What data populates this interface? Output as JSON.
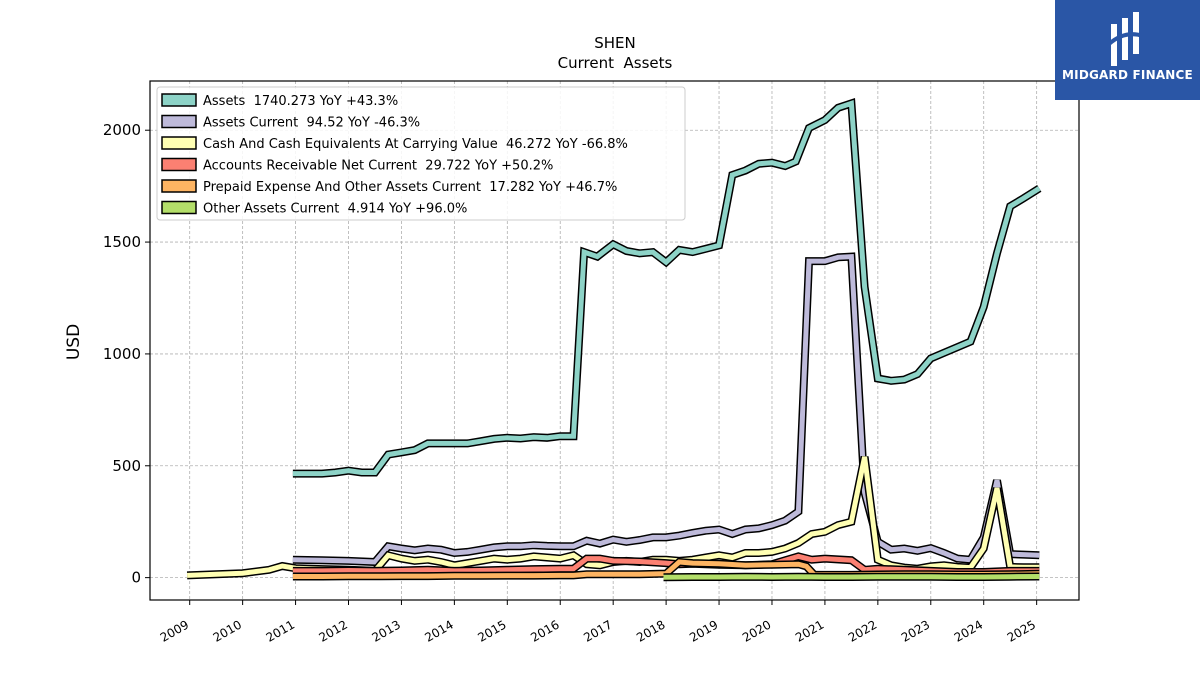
{
  "chart_data": {
    "type": "line",
    "title": "SHEN",
    "subtitle": "Current  Assets",
    "ylabel": "USD",
    "xlabel": "",
    "ylim": [
      -100,
      2220
    ],
    "xlim": [
      2008.25,
      2025.8
    ],
    "yticks": [
      0,
      500,
      1000,
      1500,
      2000
    ],
    "xticks": [
      "2009",
      "2010",
      "2011",
      "2012",
      "2013",
      "2014",
      "2015",
      "2016",
      "2017",
      "2018",
      "2019",
      "2020",
      "2021",
      "2022",
      "2023",
      "2024",
      "2025"
    ],
    "grid": true,
    "legend_position": "top-left",
    "series": [
      {
        "name": "Assets",
        "legend": "Assets  1740.273 YoY +43.3%",
        "color": "#8dd3c7",
        "points": [
          [
            2010.95,
            465
          ],
          [
            2011.25,
            465
          ],
          [
            2011.5,
            465
          ],
          [
            2011.75,
            470
          ],
          [
            2012.0,
            478
          ],
          [
            2012.25,
            470
          ],
          [
            2012.5,
            470
          ],
          [
            2012.75,
            550
          ],
          [
            2013.0,
            560
          ],
          [
            2013.25,
            570
          ],
          [
            2013.5,
            600
          ],
          [
            2013.75,
            600
          ],
          [
            2014.0,
            600
          ],
          [
            2014.25,
            600
          ],
          [
            2014.5,
            610
          ],
          [
            2014.75,
            620
          ],
          [
            2015.0,
            625
          ],
          [
            2015.25,
            622
          ],
          [
            2015.5,
            628
          ],
          [
            2015.75,
            625
          ],
          [
            2016.0,
            632
          ],
          [
            2016.25,
            632
          ],
          [
            2016.45,
            1455
          ],
          [
            2016.7,
            1435
          ],
          [
            2017.0,
            1490
          ],
          [
            2017.25,
            1460
          ],
          [
            2017.5,
            1450
          ],
          [
            2017.75,
            1455
          ],
          [
            2018.0,
            1410
          ],
          [
            2018.25,
            1465
          ],
          [
            2018.5,
            1455
          ],
          [
            2018.75,
            1470
          ],
          [
            2019.0,
            1485
          ],
          [
            2019.25,
            1800
          ],
          [
            2019.5,
            1820
          ],
          [
            2019.75,
            1850
          ],
          [
            2020.0,
            1855
          ],
          [
            2020.25,
            1840
          ],
          [
            2020.45,
            1860
          ],
          [
            2020.7,
            2010
          ],
          [
            2021.0,
            2045
          ],
          [
            2021.25,
            2100
          ],
          [
            2021.5,
            2120
          ],
          [
            2021.75,
            1300
          ],
          [
            2022.0,
            890
          ],
          [
            2022.25,
            880
          ],
          [
            2022.5,
            885
          ],
          [
            2022.75,
            910
          ],
          [
            2023.0,
            980
          ],
          [
            2023.25,
            1005
          ],
          [
            2023.5,
            1030
          ],
          [
            2023.75,
            1055
          ],
          [
            2024.0,
            1210
          ],
          [
            2024.25,
            1450
          ],
          [
            2024.5,
            1660
          ],
          [
            2024.75,
            1695
          ],
          [
            2025.05,
            1740
          ]
        ]
      },
      {
        "name": "Assets Current",
        "legend": "Assets Current  94.52 YoY -46.3%",
        "color": "#bebada",
        "points": [
          [
            2010.95,
            80
          ],
          [
            2011.5,
            78
          ],
          [
            2012.0,
            75
          ],
          [
            2012.5,
            70
          ],
          [
            2012.75,
            140
          ],
          [
            2013.0,
            130
          ],
          [
            2013.25,
            122
          ],
          [
            2013.5,
            130
          ],
          [
            2013.75,
            125
          ],
          [
            2014.0,
            110
          ],
          [
            2014.25,
            115
          ],
          [
            2014.5,
            125
          ],
          [
            2014.75,
            135
          ],
          [
            2015.0,
            140
          ],
          [
            2015.25,
            140
          ],
          [
            2015.5,
            145
          ],
          [
            2015.75,
            142
          ],
          [
            2016.0,
            140
          ],
          [
            2016.25,
            140
          ],
          [
            2016.5,
            165
          ],
          [
            2016.75,
            152
          ],
          [
            2017.0,
            170
          ],
          [
            2017.25,
            160
          ],
          [
            2017.5,
            168
          ],
          [
            2017.75,
            180
          ],
          [
            2018.0,
            180
          ],
          [
            2018.25,
            188
          ],
          [
            2018.5,
            200
          ],
          [
            2018.75,
            210
          ],
          [
            2019.0,
            215
          ],
          [
            2019.25,
            195
          ],
          [
            2019.5,
            215
          ],
          [
            2019.75,
            220
          ],
          [
            2020.0,
            235
          ],
          [
            2020.25,
            255
          ],
          [
            2020.5,
            295
          ],
          [
            2020.7,
            1415
          ],
          [
            2021.0,
            1415
          ],
          [
            2021.25,
            1432
          ],
          [
            2021.5,
            1435
          ],
          [
            2021.75,
            380
          ],
          [
            2022.0,
            160
          ],
          [
            2022.25,
            125
          ],
          [
            2022.5,
            130
          ],
          [
            2022.75,
            120
          ],
          [
            2023.0,
            132
          ],
          [
            2023.25,
            110
          ],
          [
            2023.5,
            85
          ],
          [
            2023.75,
            80
          ],
          [
            2024.0,
            180
          ],
          [
            2024.25,
            435
          ],
          [
            2024.5,
            105
          ],
          [
            2024.75,
            103
          ],
          [
            2025.05,
            100
          ]
        ]
      },
      {
        "name": "Cash And Cash Equivalents At Carrying Value",
        "legend": "Cash And Cash Equivalents At Carrying Value  46.272 YoY -66.8%",
        "color": "#ffffb3",
        "points": [
          [
            2008.95,
            10
          ],
          [
            2009.5,
            15
          ],
          [
            2010.0,
            20
          ],
          [
            2010.5,
            35
          ],
          [
            2010.75,
            52
          ],
          [
            2011.0,
            42
          ],
          [
            2011.5,
            38
          ],
          [
            2012.0,
            35
          ],
          [
            2012.5,
            30
          ],
          [
            2012.75,
            100
          ],
          [
            2013.0,
            85
          ],
          [
            2013.25,
            75
          ],
          [
            2013.5,
            80
          ],
          [
            2013.75,
            70
          ],
          [
            2014.0,
            55
          ],
          [
            2014.25,
            65
          ],
          [
            2014.5,
            75
          ],
          [
            2014.75,
            85
          ],
          [
            2015.0,
            80
          ],
          [
            2015.25,
            85
          ],
          [
            2015.5,
            95
          ],
          [
            2015.75,
            90
          ],
          [
            2016.0,
            85
          ],
          [
            2016.25,
            100
          ],
          [
            2016.5,
            60
          ],
          [
            2016.75,
            55
          ],
          [
            2017.0,
            70
          ],
          [
            2017.25,
            75
          ],
          [
            2017.5,
            70
          ],
          [
            2017.75,
            80
          ],
          [
            2018.0,
            80
          ],
          [
            2018.25,
            75
          ],
          [
            2018.5,
            80
          ],
          [
            2018.75,
            90
          ],
          [
            2019.0,
            100
          ],
          [
            2019.25,
            90
          ],
          [
            2019.5,
            110
          ],
          [
            2019.75,
            110
          ],
          [
            2020.0,
            115
          ],
          [
            2020.25,
            130
          ],
          [
            2020.5,
            155
          ],
          [
            2020.75,
            195
          ],
          [
            2021.0,
            205
          ],
          [
            2021.25,
            235
          ],
          [
            2021.5,
            250
          ],
          [
            2021.75,
            540
          ],
          [
            2022.0,
            80
          ],
          [
            2022.25,
            55
          ],
          [
            2022.5,
            45
          ],
          [
            2022.75,
            40
          ],
          [
            2023.0,
            50
          ],
          [
            2023.25,
            55
          ],
          [
            2023.5,
            48
          ],
          [
            2023.75,
            45
          ],
          [
            2024.0,
            130
          ],
          [
            2024.25,
            400
          ],
          [
            2024.5,
            48
          ],
          [
            2024.75,
            46
          ],
          [
            2025.05,
            46
          ]
        ]
      },
      {
        "name": "Accounts Receivable Net Current",
        "legend": "Accounts Receivable Net Current  29.722 YoY +50.2%",
        "color": "#fb8072",
        "points": [
          [
            2010.95,
            30
          ],
          [
            2011.5,
            30
          ],
          [
            2012.0,
            32
          ],
          [
            2012.5,
            30
          ],
          [
            2013.0,
            32
          ],
          [
            2013.5,
            35
          ],
          [
            2014.0,
            30
          ],
          [
            2014.5,
            32
          ],
          [
            2015.0,
            35
          ],
          [
            2015.5,
            38
          ],
          [
            2016.0,
            40
          ],
          [
            2016.25,
            40
          ],
          [
            2016.5,
            85
          ],
          [
            2016.75,
            85
          ],
          [
            2017.0,
            75
          ],
          [
            2017.5,
            72
          ],
          [
            2018.0,
            65
          ],
          [
            2018.25,
            60
          ],
          [
            2018.5,
            62
          ],
          [
            2019.0,
            58
          ],
          [
            2019.5,
            55
          ],
          [
            2020.0,
            60
          ],
          [
            2020.5,
            95
          ],
          [
            2020.75,
            80
          ],
          [
            2021.0,
            85
          ],
          [
            2021.5,
            78
          ],
          [
            2021.75,
            35
          ],
          [
            2022.0,
            40
          ],
          [
            2022.5,
            35
          ],
          [
            2023.0,
            30
          ],
          [
            2023.5,
            25
          ],
          [
            2024.0,
            25
          ],
          [
            2024.5,
            30
          ],
          [
            2025.05,
            30
          ]
        ]
      },
      {
        "name": "Prepaid Expense And Other Assets Current",
        "legend": "Prepaid Expense And Other Assets Current  17.282 YoY +46.7%",
        "color": "#fdb462",
        "points": [
          [
            2010.95,
            5
          ],
          [
            2011.5,
            5
          ],
          [
            2012.0,
            6
          ],
          [
            2012.5,
            6
          ],
          [
            2013.0,
            7
          ],
          [
            2013.5,
            7
          ],
          [
            2014.0,
            8
          ],
          [
            2014.5,
            8
          ],
          [
            2015.0,
            9
          ],
          [
            2015.5,
            9
          ],
          [
            2016.0,
            10
          ],
          [
            2016.25,
            10
          ],
          [
            2016.5,
            15
          ],
          [
            2017.0,
            15
          ],
          [
            2017.5,
            15
          ],
          [
            2018.0,
            18
          ],
          [
            2018.25,
            70
          ],
          [
            2018.5,
            65
          ],
          [
            2019.0,
            62
          ],
          [
            2019.5,
            55
          ],
          [
            2020.0,
            58
          ],
          [
            2020.5,
            60
          ],
          [
            2020.65,
            50
          ],
          [
            2020.8,
            12
          ],
          [
            2021.5,
            12
          ],
          [
            2022.0,
            14
          ],
          [
            2022.5,
            15
          ],
          [
            2023.0,
            15
          ],
          [
            2023.5,
            14
          ],
          [
            2024.0,
            14
          ],
          [
            2024.5,
            15
          ],
          [
            2025.05,
            17
          ]
        ]
      },
      {
        "name": "Other Assets Current",
        "legend": "Other Assets Current  4.914 YoY +96.0%",
        "color": "#b3de69",
        "points": [
          [
            2017.95,
            2
          ],
          [
            2018.5,
            3
          ],
          [
            2019.0,
            3
          ],
          [
            2019.5,
            4
          ],
          [
            2020.0,
            3
          ],
          [
            2020.5,
            4
          ],
          [
            2021.0,
            3
          ],
          [
            2021.5,
            3
          ],
          [
            2022.0,
            4
          ],
          [
            2022.5,
            4
          ],
          [
            2023.0,
            4
          ],
          [
            2023.5,
            3
          ],
          [
            2024.0,
            3
          ],
          [
            2024.5,
            4
          ],
          [
            2025.05,
            5
          ]
        ]
      }
    ]
  },
  "logo": {
    "text": "MIDGARD FINANCE"
  }
}
